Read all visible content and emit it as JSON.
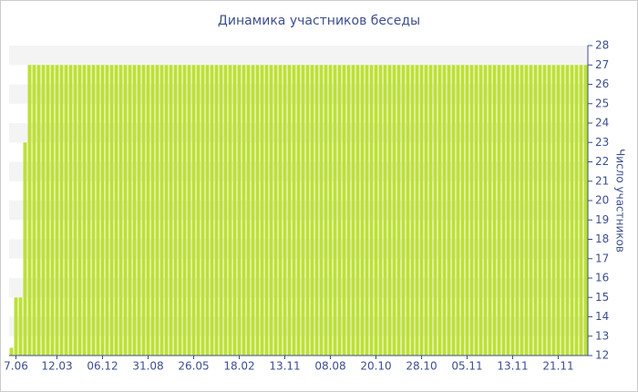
{
  "chart_data": {
    "type": "bar",
    "title": "Динамика участников беседы",
    "y_label": "Число участников",
    "categories": [
      null,
      "7.06",
      null,
      null,
      null,
      null,
      null,
      null,
      null,
      null,
      "12.03",
      null,
      null,
      null,
      null,
      null,
      null,
      null,
      null,
      null,
      "06.12",
      null,
      null,
      null,
      null,
      null,
      null,
      null,
      null,
      null,
      "31.08",
      null,
      null,
      null,
      null,
      null,
      null,
      null,
      null,
      null,
      "26.05",
      null,
      null,
      null,
      null,
      null,
      null,
      null,
      null,
      null,
      "18.02",
      null,
      null,
      null,
      null,
      null,
      null,
      null,
      null,
      null,
      "13.11",
      null,
      null,
      null,
      null,
      null,
      null,
      null,
      null,
      null,
      "08.08",
      null,
      null,
      null,
      null,
      null,
      null,
      null,
      null,
      null,
      "20.10",
      null,
      null,
      null,
      null,
      null,
      null,
      null,
      null,
      null,
      "28.10",
      null,
      null,
      null,
      null,
      null,
      null,
      null,
      null,
      null,
      "05.11",
      null,
      null,
      null,
      null,
      null,
      null,
      null,
      null,
      null,
      "13.11",
      null,
      null,
      null,
      null,
      null,
      null,
      null,
      null,
      null,
      "21.11",
      null,
      null,
      null,
      null,
      null,
      null
    ],
    "values": [
      12.4,
      15,
      15,
      23,
      27,
      27,
      27,
      27,
      27,
      27,
      27,
      27,
      27,
      27,
      27,
      27,
      27,
      27,
      27,
      27,
      27,
      27,
      27,
      27,
      27,
      27,
      27,
      27,
      27,
      27,
      27,
      27,
      27,
      27,
      27,
      27,
      27,
      27,
      27,
      27,
      27,
      27,
      27,
      27,
      27,
      27,
      27,
      27,
      27,
      27,
      27,
      27,
      27,
      27,
      27,
      27,
      27,
      27,
      27,
      27,
      27,
      27,
      27,
      27,
      27,
      27,
      27,
      27,
      27,
      27,
      27,
      27,
      27,
      27,
      27,
      27,
      27,
      27,
      27,
      27,
      27,
      27,
      27,
      27,
      27,
      27,
      27,
      27,
      27,
      27,
      27,
      27,
      27,
      27,
      27,
      27,
      27,
      27,
      27,
      27,
      27,
      27,
      27,
      27,
      27,
      27,
      27,
      27,
      27,
      27,
      27,
      27,
      27,
      27,
      27,
      27,
      27,
      27,
      27,
      27,
      27,
      27,
      27,
      27,
      27,
      27,
      27
    ],
    "color": "#bde037",
    "ylim": [
      12,
      28
    ],
    "yticks": [
      12,
      13,
      14,
      15,
      16,
      17,
      18,
      19,
      20,
      21,
      22,
      23,
      24,
      25,
      26,
      27,
      28
    ],
    "grid": true,
    "y_axis_side": "right"
  }
}
